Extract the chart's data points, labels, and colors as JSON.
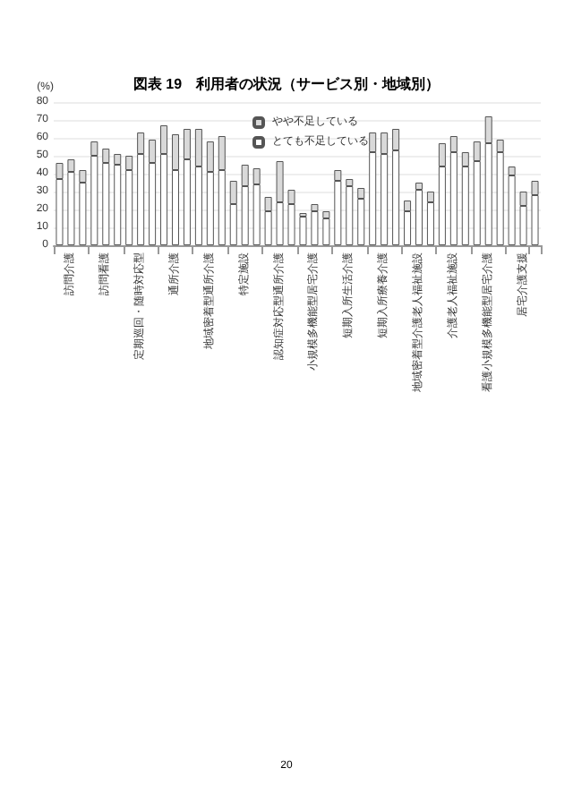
{
  "chart_data": {
    "type": "bar",
    "stacked": true,
    "title": "図表 19　利用者の状況（サービス別・地域別）",
    "ylabel": "(%)",
    "categories": [
      null,
      "訪問介護",
      null,
      null,
      "訪問看護",
      null,
      null,
      "定期巡回・随時対応型",
      null,
      null,
      "通所介護",
      null,
      null,
      "地域密着型通所介護",
      null,
      null,
      "特定施設",
      null,
      null,
      "認知症対応型通所介護",
      null,
      null,
      "小規模多機能型居宅介護",
      null,
      null,
      "短期入所生活介護",
      null,
      null,
      "短期入所療養介護",
      null,
      null,
      "地域密着型介護老人福祉施設",
      null,
      null,
      "介護老人福祉施設",
      null,
      null,
      "看護小規模多機能型居宅介護",
      null,
      null,
      "居宅介護支援",
      null
    ],
    "series": [
      {
        "name": "とても不足している",
        "color": "#ffffff",
        "values": [
          37,
          41,
          35,
          50,
          46,
          45,
          42,
          51,
          46,
          51,
          42,
          48,
          44,
          41,
          42,
          23,
          33,
          34,
          19,
          24,
          23,
          16,
          19,
          15,
          36,
          33,
          26,
          52,
          51,
          53,
          19,
          31,
          24,
          44,
          52,
          44,
          47,
          57,
          52,
          39,
          22,
          28
        ]
      },
      {
        "name": "やや不足している",
        "color": "#d9d9d9",
        "values": [
          9,
          7,
          7,
          8,
          8,
          6,
          8,
          12,
          13,
          16,
          20,
          17,
          21,
          17,
          19,
          13,
          12,
          9,
          8,
          23,
          8,
          2,
          4,
          4,
          6,
          4,
          6,
          11,
          12,
          12,
          6,
          4,
          6,
          13,
          9,
          8,
          11,
          15,
          7,
          5,
          8,
          8
        ]
      }
    ],
    "ylim": [
      0,
      80
    ],
    "yticks": [
      0,
      10,
      20,
      30,
      40,
      50,
      60,
      70,
      80
    ],
    "grid": "y",
    "legend": "top",
    "annotations": [
      "20"
    ]
  }
}
